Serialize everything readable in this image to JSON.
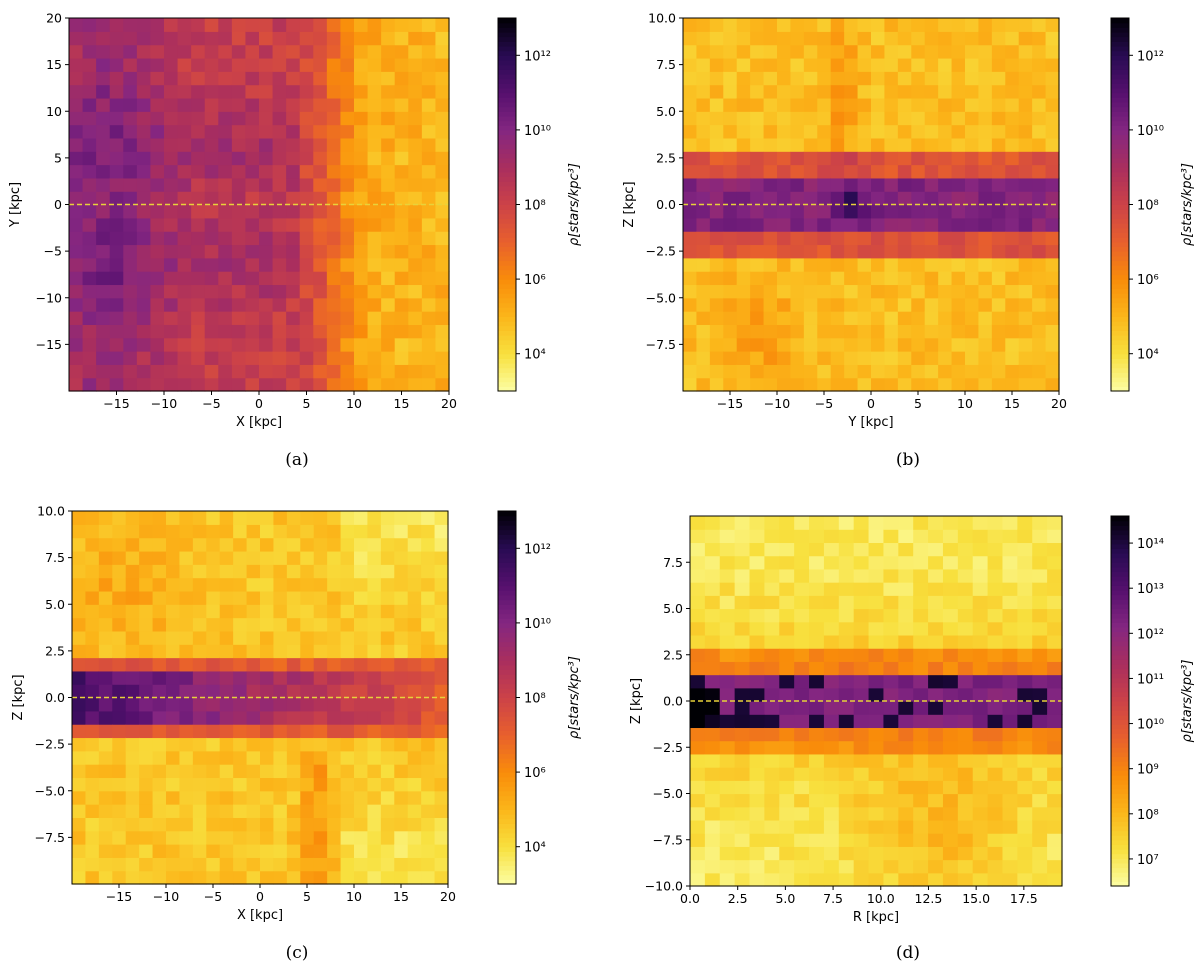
{
  "colormap": [
    "#fcfea4",
    "#f8e03e",
    "#fbb61a",
    "#f98c0a",
    "#e8602d",
    "#cc4248",
    "#a92e5e",
    "#842681",
    "#56106e",
    "#280b53",
    "#000004"
  ],
  "reference_line_color": "#e8d23a",
  "chart_data": [
    {
      "type": "heatmap",
      "caption": "(a)",
      "xlabel": "X [kpc]",
      "ylabel": "Y [kpc]",
      "xlim": [
        -20,
        20
      ],
      "ylim": [
        -20,
        20
      ],
      "xticks": [
        {
          "v": -15,
          "label": "−15"
        },
        {
          "v": -10,
          "label": "−10"
        },
        {
          "v": -5,
          "label": "−5"
        },
        {
          "v": 0,
          "label": "0"
        },
        {
          "v": 5,
          "label": "5"
        },
        {
          "v": 10,
          "label": "10"
        },
        {
          "v": 15,
          "label": "15"
        },
        {
          "v": 20,
          "label": "20"
        }
      ],
      "yticks": [
        {
          "v": -15,
          "label": "−15"
        },
        {
          "v": -10,
          "label": "−10"
        },
        {
          "v": -5,
          "label": "−5"
        },
        {
          "v": 0,
          "label": "0"
        },
        {
          "v": 5,
          "label": "5"
        },
        {
          "v": 10,
          "label": "10"
        },
        {
          "v": 15,
          "label": "15"
        },
        {
          "v": 20,
          "label": "20"
        }
      ],
      "reference_line_y": 0,
      "color_scale": {
        "type": "log",
        "range_exp": [
          3,
          13
        ],
        "label": "ρ[stars/kpc³]",
        "ticks": [
          {
            "exp": 4,
            "label": "10⁴"
          },
          {
            "exp": 6,
            "label": "10⁶"
          },
          {
            "exp": 8,
            "label": "10⁸"
          },
          {
            "exp": 10,
            "label": "10¹⁰"
          },
          {
            "exp": 12,
            "label": "10¹²"
          }
        ]
      },
      "grid": {
        "x_bins": [
          -20,
          20,
          28
        ],
        "y_bins": [
          -20,
          20,
          28
        ]
      },
      "density_model": "plane_xy"
    },
    {
      "type": "heatmap",
      "caption": "(b)",
      "xlabel": "Y [kpc]",
      "ylabel": "Z [kpc]",
      "xlim": [
        -20,
        20
      ],
      "ylim": [
        -10,
        10
      ],
      "xticks": [
        {
          "v": -15,
          "label": "−15"
        },
        {
          "v": -10,
          "label": "−10"
        },
        {
          "v": -5,
          "label": "−5"
        },
        {
          "v": 0,
          "label": "0"
        },
        {
          "v": 5,
          "label": "5"
        },
        {
          "v": 10,
          "label": "10"
        },
        {
          "v": 15,
          "label": "15"
        },
        {
          "v": 20,
          "label": "20"
        }
      ],
      "yticks": [
        {
          "v": -7.5,
          "label": "−7.5"
        },
        {
          "v": -5,
          "label": "−5.0"
        },
        {
          "v": -2.5,
          "label": "−2.5"
        },
        {
          "v": 0,
          "label": "0.0"
        },
        {
          "v": 2.5,
          "label": "2.5"
        },
        {
          "v": 5,
          "label": "5.0"
        },
        {
          "v": 7.5,
          "label": "7.5"
        },
        {
          "v": 10,
          "label": "10.0"
        }
      ],
      "reference_line_y": 0,
      "color_scale": {
        "type": "log",
        "range_exp": [
          3,
          13
        ],
        "label": "ρ[stars/kpc³]",
        "ticks": [
          {
            "exp": 4,
            "label": "10⁴"
          },
          {
            "exp": 6,
            "label": "10⁶"
          },
          {
            "exp": 8,
            "label": "10⁸"
          },
          {
            "exp": 10,
            "label": "10¹⁰"
          },
          {
            "exp": 12,
            "label": "10¹²"
          }
        ]
      },
      "grid": {
        "x_bins": [
          -20,
          20,
          28
        ],
        "y_bins": [
          -10,
          10,
          28
        ]
      },
      "density_model": "edge_yz"
    },
    {
      "type": "heatmap",
      "caption": "(c)",
      "xlabel": "X [kpc]",
      "ylabel": "Z [kpc]",
      "xlim": [
        -20,
        20
      ],
      "ylim": [
        -10,
        10
      ],
      "xticks": [
        {
          "v": -15,
          "label": "−15"
        },
        {
          "v": -10,
          "label": "−10"
        },
        {
          "v": -5,
          "label": "−5"
        },
        {
          "v": 0,
          "label": "0"
        },
        {
          "v": 5,
          "label": "5"
        },
        {
          "v": 10,
          "label": "10"
        },
        {
          "v": 15,
          "label": "15"
        },
        {
          "v": 20,
          "label": "20"
        }
      ],
      "yticks": [
        {
          "v": -7.5,
          "label": "−7.5"
        },
        {
          "v": -5,
          "label": "−5.0"
        },
        {
          "v": -2.5,
          "label": "−2.5"
        },
        {
          "v": 0,
          "label": "0.0"
        },
        {
          "v": 2.5,
          "label": "2.5"
        },
        {
          "v": 5,
          "label": "5.0"
        },
        {
          "v": 7.5,
          "label": "7.5"
        },
        {
          "v": 10,
          "label": "10.0"
        }
      ],
      "reference_line_y": 0,
      "color_scale": {
        "type": "log",
        "range_exp": [
          3,
          13
        ],
        "label": "ρ[stars/kpc³]",
        "ticks": [
          {
            "exp": 4,
            "label": "10⁴"
          },
          {
            "exp": 6,
            "label": "10⁶"
          },
          {
            "exp": 8,
            "label": "10⁸"
          },
          {
            "exp": 10,
            "label": "10¹⁰"
          },
          {
            "exp": 12,
            "label": "10¹²"
          }
        ]
      },
      "grid": {
        "x_bins": [
          -20,
          20,
          28
        ],
        "y_bins": [
          -10,
          10,
          28
        ]
      },
      "density_model": "edge_xz"
    },
    {
      "type": "heatmap",
      "caption": "(d)",
      "xlabel": "R [kpc]",
      "ylabel": "Z [kpc]",
      "xlim": [
        0,
        19.5
      ],
      "ylim": [
        -10,
        10
      ],
      "xticks": [
        {
          "v": 0,
          "label": "0.0"
        },
        {
          "v": 2.5,
          "label": "2.5"
        },
        {
          "v": 5,
          "label": "5.0"
        },
        {
          "v": 7.5,
          "label": "7.5"
        },
        {
          "v": 10,
          "label": "10.0"
        },
        {
          "v": 12.5,
          "label": "12.5"
        },
        {
          "v": 15,
          "label": "15.0"
        },
        {
          "v": 17.5,
          "label": "17.5"
        }
      ],
      "yticks": [
        {
          "v": -10,
          "label": "−10.0"
        },
        {
          "v": -7.5,
          "label": "−7.5"
        },
        {
          "v": -5,
          "label": "−5.0"
        },
        {
          "v": -2.5,
          "label": "−2.5"
        },
        {
          "v": 0,
          "label": "0.0"
        },
        {
          "v": 2.5,
          "label": "2.5"
        },
        {
          "v": 5,
          "label": "5.0"
        },
        {
          "v": 7.5,
          "label": "7.5"
        }
      ],
      "reference_line_y": 0,
      "color_scale": {
        "type": "log",
        "range_exp": [
          6.4,
          14.6
        ],
        "label": "ρ[stars/kpc³]",
        "ticks": [
          {
            "exp": 7,
            "label": "10⁷"
          },
          {
            "exp": 8,
            "label": "10⁸"
          },
          {
            "exp": 9,
            "label": "10⁹"
          },
          {
            "exp": 10,
            "label": "10¹⁰"
          },
          {
            "exp": 11,
            "label": "10¹¹"
          },
          {
            "exp": 12,
            "label": "10¹²"
          },
          {
            "exp": 13,
            "label": "10¹³"
          },
          {
            "exp": 14,
            "label": "10¹⁴"
          }
        ]
      },
      "grid": {
        "x_bins": [
          0,
          19.5,
          25
        ],
        "y_bins": [
          -10,
          10,
          28
        ]
      },
      "density_model": "rz"
    }
  ]
}
